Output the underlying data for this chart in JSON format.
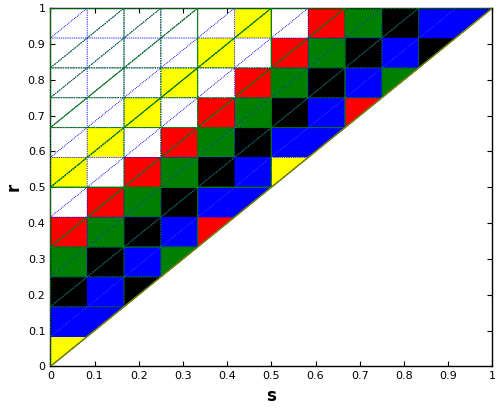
{
  "xlabel": "s",
  "ylabel": "r",
  "xlim": [
    0,
    1
  ],
  "ylim": [
    0,
    1
  ],
  "xticks": [
    0,
    0.1,
    0.2,
    0.3,
    0.4,
    0.5,
    0.6,
    0.7,
    0.8,
    0.9,
    1
  ],
  "yticks": [
    0,
    0.1,
    0.2,
    0.3,
    0.4,
    0.5,
    0.6,
    0.7,
    0.8,
    0.9,
    1
  ],
  "diagonal_color": "olive",
  "k_values": [
    2,
    3,
    4,
    6,
    12
  ],
  "k_colors": {
    "2": "yellow",
    "3": "red",
    "4": "green",
    "6": "black",
    "12": "blue"
  },
  "draw_order": [
    12,
    6,
    4,
    3,
    2
  ],
  "dotted_blue_lw": 0.5,
  "dotted_green_lw": 0.7,
  "tri_alpha": 1.0,
  "feedback": -0.8
}
